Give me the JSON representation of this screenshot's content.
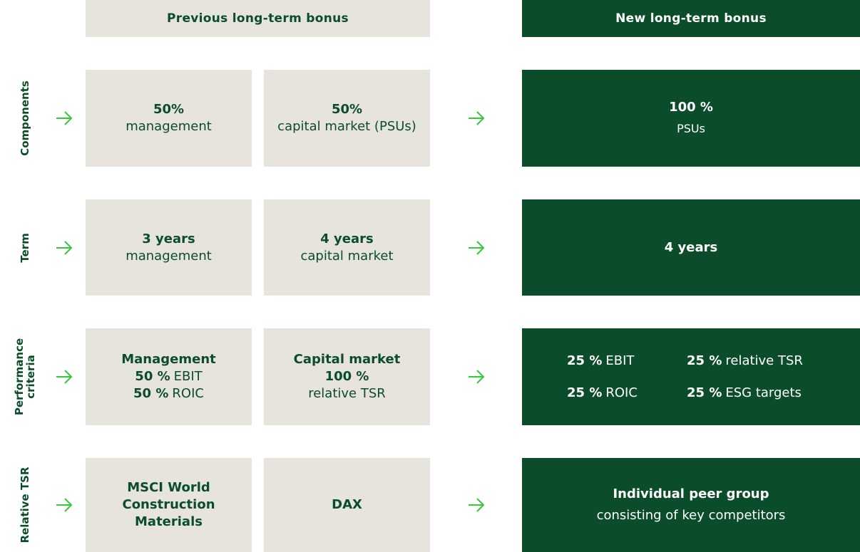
{
  "header": {
    "previous": "Previous long-term bonus",
    "new": "New long-term bonus"
  },
  "rows": [
    {
      "label": [
        "Components"
      ],
      "previous": [
        {
          "lines": [
            [
              {
                "text": "50%",
                "bold": true
              }
            ],
            [
              {
                "text": "management"
              }
            ]
          ]
        },
        {
          "lines": [
            [
              {
                "text": "50%",
                "bold": true
              }
            ],
            [
              {
                "text": "capital market (PSUs)"
              }
            ]
          ]
        }
      ],
      "new": {
        "lines": [
          [
            {
              "text": "100 %",
              "bold": true
            }
          ],
          [
            {
              "text": "PSUs",
              "small": true
            }
          ]
        ]
      }
    },
    {
      "label": [
        "Term"
      ],
      "previous": [
        {
          "lines": [
            [
              {
                "text": "3 years",
                "bold": true
              }
            ],
            [
              {
                "text": "management"
              }
            ]
          ]
        },
        {
          "lines": [
            [
              {
                "text": "4 years",
                "bold": true
              }
            ],
            [
              {
                "text": "capital market"
              }
            ]
          ]
        }
      ],
      "new": {
        "lines": [
          [
            {
              "text": "4 years",
              "bold": true
            }
          ]
        ]
      }
    },
    {
      "label": [
        "Performance",
        "criteria"
      ],
      "previous": [
        {
          "lines": [
            [
              {
                "text": "Management",
                "bold": true
              }
            ],
            [
              {
                "text": "50 %",
                "bold": true
              },
              {
                "text": "EBIT"
              }
            ],
            [
              {
                "text": "50 %",
                "bold": true
              },
              {
                "text": "ROIC"
              }
            ]
          ]
        },
        {
          "lines": [
            [
              {
                "text": "Capital market",
                "bold": true
              }
            ],
            [
              {
                "text": "100 %",
                "bold": true
              }
            ],
            [
              {
                "text": "relative TSR"
              }
            ]
          ]
        }
      ],
      "new": {
        "grid": [
          [
            {
              "text": "25 %",
              "bold": true
            },
            {
              "text": "EBIT"
            }
          ],
          [
            {
              "text": "25 %",
              "bold": true
            },
            {
              "text": "relative TSR"
            }
          ],
          [
            {
              "text": "25 %",
              "bold": true
            },
            {
              "text": "ROIC"
            }
          ],
          [
            {
              "text": "25 %",
              "bold": true
            },
            {
              "text": "ESG targets"
            }
          ]
        ]
      }
    },
    {
      "label": [
        "Relative TSR"
      ],
      "previous": [
        {
          "lines": [
            [
              {
                "text": "MSCI World",
                "bold": true
              }
            ],
            [
              {
                "text": "Construction",
                "bold": true
              }
            ],
            [
              {
                "text": "Materials",
                "bold": true
              }
            ]
          ]
        },
        {
          "lines": [
            [
              {
                "text": "DAX",
                "bold": true
              }
            ]
          ]
        }
      ],
      "new": {
        "lines": [
          [
            {
              "text": "Individual peer group",
              "bold": true
            }
          ],
          [
            {
              "text": "consisting of key competitors"
            }
          ]
        ]
      }
    }
  ]
}
